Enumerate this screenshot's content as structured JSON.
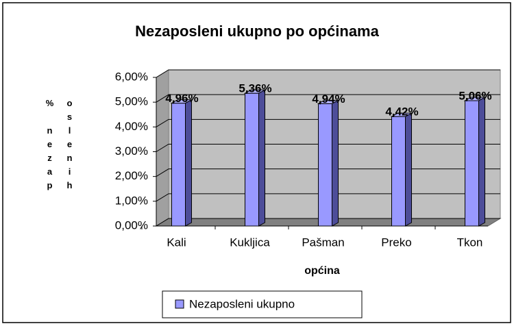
{
  "chart_data": {
    "type": "bar",
    "title": "Nezaposleni ukupno po općinama",
    "categories": [
      "Kali",
      "Kukljica",
      "Pašman",
      "Preko",
      "Tkon"
    ],
    "series": [
      {
        "name": "Nezaposleni ukupno",
        "color": "#9999ff",
        "values": [
          4.96,
          5.36,
          4.94,
          4.42,
          5.06
        ],
        "value_labels": [
          "4,96%",
          "5,36%",
          "4,94%",
          "4,42%",
          "5,06%"
        ]
      }
    ],
    "x_label": "općina",
    "y_label": "% nezaposlenih",
    "ylim": [
      0,
      6
    ],
    "yticks": [
      {
        "value": 0,
        "label": "0,00%"
      },
      {
        "value": 1,
        "label": "1,00%"
      },
      {
        "value": 2,
        "label": "2,00%"
      },
      {
        "value": 3,
        "label": "3,00%"
      },
      {
        "value": 4,
        "label": "4,00%"
      },
      {
        "value": 5,
        "label": "5,00%"
      },
      {
        "value": 6,
        "label": "6,00%"
      }
    ],
    "grid": true,
    "legend": "bottom"
  }
}
